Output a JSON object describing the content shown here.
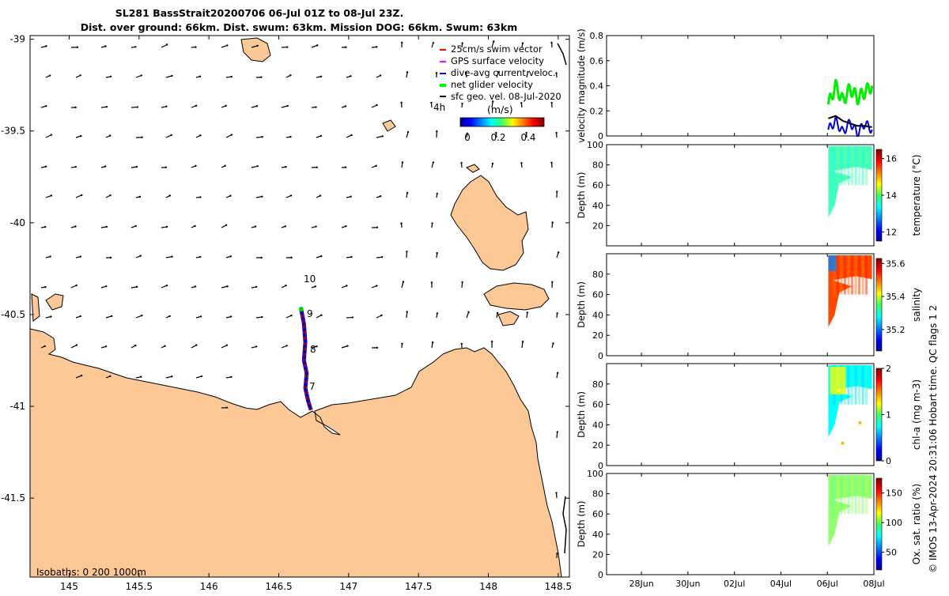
{
  "header": {
    "title_line1": "SL281 BassStrait20200706 06-Jul 01Z to 08-Jul 23Z.",
    "title_line2": "Dist. over ground: 66km. Dist. swum: 63km. Mission DOG: 66km. Swum: 63km"
  },
  "map": {
    "legend": {
      "items": [
        {
          "label": "25cm/s swim vector",
          "color": "#ff0000"
        },
        {
          "label": "GPS surface velocity",
          "color": "#ff00ff"
        },
        {
          "label": "dive-avg current veloc.",
          "color": "#0000ff"
        },
        {
          "label": "net glider velocity",
          "color": "#00ff00"
        },
        {
          "label": "sfc geo. vel. 08-Jul-2020",
          "color": "#000000"
        }
      ],
      "age_label": "4h",
      "colorbar_title": "(m/s)",
      "colorbar_ticks": [
        "0",
        "0.2",
        "0.4"
      ]
    },
    "isobaths_label": "Isobaths: 0   200  1000m",
    "track_labels": [
      "10",
      "9",
      "8",
      "7"
    ],
    "land_color": "#fcc896",
    "ocean_color": "#ffffff"
  },
  "side_panels": {
    "x_ticks": [
      "28Jun",
      "30Jun",
      "02Jul",
      "04Jul",
      "06Jul",
      "08Jul"
    ],
    "copyright": "© IMOS 13-Apr-2024 20:31:06 Hobart time. QC flags 1  2"
  },
  "chart_data": [
    {
      "type": "scatter",
      "title": "",
      "xlabel": "",
      "ylabel": "",
      "x_ticks": [
        "145",
        "145.5",
        "146",
        "146.5",
        "147",
        "147.5",
        "148",
        "148.5"
      ],
      "y_ticks": [
        "-39",
        "-39.5",
        "-40",
        "-40.5",
        "-41",
        "-41.5"
      ],
      "xlim": [
        144.72,
        148.58
      ],
      "ylim": [
        -41.93,
        -38.98
      ],
      "series": [
        {
          "name": "dive-avg current veloc.",
          "x": [
            146.66,
            146.68,
            146.69,
            146.68,
            146.7,
            146.69,
            146.71,
            146.73
          ],
          "y": [
            -40.47,
            -40.55,
            -40.65,
            -40.75,
            -40.82,
            -40.9,
            -40.97,
            -41.02
          ]
        }
      ]
    },
    {
      "type": "line",
      "title": "",
      "ylabel": "velocity magnitude (m/s)",
      "ylim": [
        0,
        0.8
      ],
      "y_ticks": [
        "0",
        "0.2",
        "0.4",
        "0.6",
        "0.8"
      ],
      "series": [
        {
          "name": "net glider velocity",
          "color": "#00ee00",
          "x": [
            "06Jul 01Z",
            "06Jul 12Z",
            "07Jul 00Z",
            "07Jul 12Z",
            "08Jul 00Z",
            "08Jul 12Z",
            "08Jul 23Z"
          ],
          "values": [
            0.25,
            0.4,
            0.28,
            0.38,
            0.3,
            0.35,
            0.4
          ]
        },
        {
          "name": "dive-avg current veloc.",
          "color": "#0000cc",
          "x": [
            "06Jul 01Z",
            "06Jul 12Z",
            "07Jul 00Z",
            "07Jul 12Z",
            "08Jul 00Z",
            "08Jul 12Z",
            "08Jul 23Z"
          ],
          "values": [
            0.05,
            0.12,
            0.03,
            0.11,
            0.02,
            0.1,
            0.05
          ]
        },
        {
          "name": "sfc geo. vel. 08-Jul-2020",
          "color": "#000000",
          "x": [
            "06Jul 01Z",
            "06Jul 12Z",
            "07Jul 00Z",
            "07Jul 12Z",
            "08Jul 00Z",
            "08Jul 12Z",
            "08Jul 23Z"
          ],
          "values": [
            0.14,
            0.16,
            0.12,
            0.1,
            0.08,
            0.08,
            0.07
          ]
        }
      ]
    },
    {
      "type": "heatmap",
      "ylabel": "Depth (m)",
      "colorbar_label": "temperature (°C)",
      "colorbar_ticks": [
        "12",
        "14",
        "16"
      ],
      "clim": [
        11.5,
        16.5
      ],
      "ylim": [
        100,
        0
      ],
      "y_ticks": [
        "20",
        "40",
        "60",
        "80",
        "100"
      ],
      "typical_value": 13.7
    },
    {
      "type": "heatmap",
      "ylabel": "Depth (m)",
      "colorbar_label": "salinity",
      "colorbar_ticks": [
        "35.2",
        "35.4",
        "35.6"
      ],
      "clim": [
        35.07,
        35.63
      ],
      "ylim": [
        100,
        0
      ],
      "y_ticks": [
        "0",
        "20",
        "40",
        "60",
        "80"
      ],
      "typical_value": 35.52
    },
    {
      "type": "heatmap",
      "ylabel": "Depth (m)",
      "colorbar_label": "chl-a (mg m-3)",
      "colorbar_ticks": [
        "0",
        "1",
        "2"
      ],
      "clim": [
        0,
        2
      ],
      "ylim": [
        100,
        0
      ],
      "y_ticks": [
        "0",
        "20",
        "40",
        "60",
        "80"
      ],
      "typical_value": 0.75
    },
    {
      "type": "heatmap",
      "ylabel": "Depth (m)",
      "colorbar_label": "Ox. sat. ratio (%)",
      "colorbar_ticks": [
        "50",
        "100",
        "150"
      ],
      "clim": [
        20,
        175
      ],
      "ylim": [
        100,
        0
      ],
      "y_ticks": [
        "0",
        "20",
        "40",
        "60",
        "80",
        "100"
      ],
      "typical_value": 100
    }
  ]
}
